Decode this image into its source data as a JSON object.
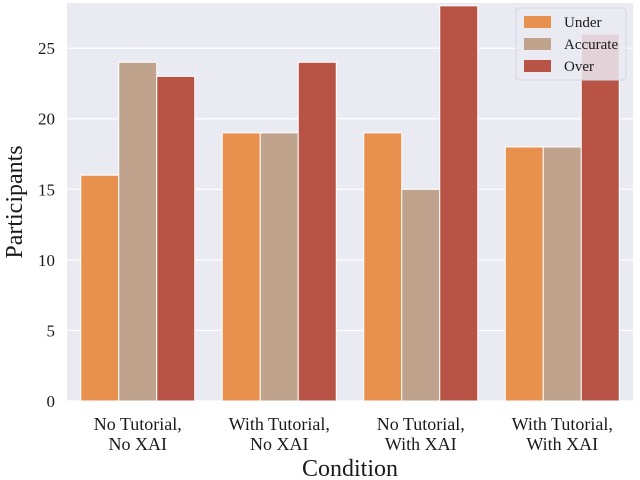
{
  "chart_data": {
    "type": "bar",
    "title": "",
    "xlabel": "Condition",
    "ylabel": "Participants",
    "categories": [
      [
        "No Tutorial,",
        "No XAI"
      ],
      [
        "With Tutorial,",
        "No XAI"
      ],
      [
        "No Tutorial,",
        "With XAI"
      ],
      [
        "With Tutorial,",
        "With XAI"
      ]
    ],
    "series": [
      {
        "name": "Under",
        "color": "#e8914f",
        "values": [
          16,
          19,
          19,
          18
        ]
      },
      {
        "name": "Accurate",
        "color": "#bfa38c",
        "values": [
          24,
          19,
          15,
          18
        ]
      },
      {
        "name": "Over",
        "color": "#b85446",
        "values": [
          23,
          24,
          28,
          26
        ]
      }
    ],
    "ylim": [
      0,
      28.2
    ],
    "yticks": [
      0,
      5,
      10,
      15,
      20,
      25
    ],
    "grid": true,
    "legend_position": "top-right",
    "background": "#eaeaf2"
  }
}
